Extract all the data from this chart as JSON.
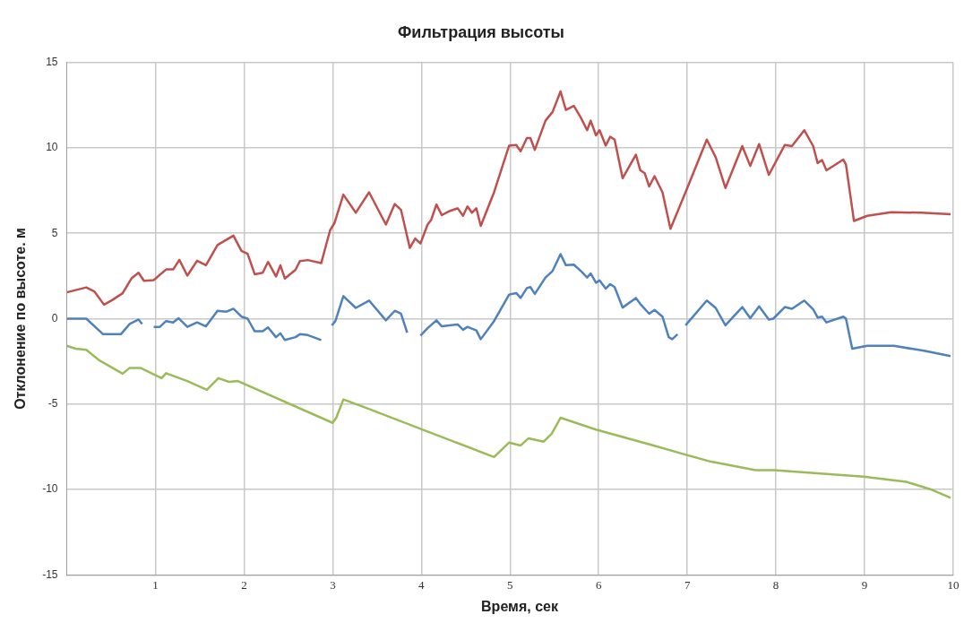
{
  "chart_data": {
    "type": "line",
    "title": "Фильтрация высоты",
    "xlabel": "Время, сек",
    "ylabel": "Отклонение по высоте. м",
    "xlim": [
      0,
      10
    ],
    "xticks": [
      1,
      2,
      3,
      4,
      5,
      6,
      7,
      8,
      9,
      10
    ],
    "ylim": [
      -15,
      15
    ],
    "yticks": [
      -15,
      -10,
      -5,
      0,
      5,
      10,
      15
    ],
    "grid": true,
    "legend": false,
    "marker": "none",
    "line_style": "solid",
    "series": [
      {
        "color": "#c0504d",
        "x": [
          0,
          0.22,
          0.31,
          0.42,
          0.51,
          0.63,
          0.73,
          0.81,
          0.87,
          0.98,
          1.12,
          1.2,
          1.27,
          1.36,
          1.47,
          1.57,
          1.7,
          1.88,
          1.97,
          2.04,
          2.12,
          2.21,
          2.27,
          2.36,
          2.41,
          2.46,
          2.58,
          2.63,
          2.72,
          2.87,
          2.97,
          3.02,
          3.12,
          3.26,
          3.41,
          3.6,
          3.7,
          3.77,
          3.87,
          3.93,
          3.99,
          4.07,
          4.11,
          4.17,
          4.23,
          4.31,
          4.41,
          4.47,
          4.52,
          4.57,
          4.62,
          4.67,
          4.82,
          4.99,
          5.07,
          5.12,
          5.19,
          5.23,
          5.28,
          5.4,
          5.48,
          5.57,
          5.63,
          5.72,
          5.8,
          5.87,
          5.91,
          5.97,
          6.01,
          6.08,
          6.13,
          6.18,
          6.27,
          6.42,
          6.47,
          6.52,
          6.57,
          6.63,
          6.72,
          6.81,
          6.98,
          7.22,
          7.32,
          7.43,
          7.62,
          7.71,
          7.81,
          7.92,
          8.1,
          8.18,
          8.32,
          8.42,
          8.47,
          8.52,
          8.57,
          8.76,
          8.79,
          8.88,
          9.03,
          9.3,
          9.64,
          9.97
        ],
        "values": [
          1.54,
          1.83,
          1.6,
          0.82,
          1.08,
          1.49,
          2.36,
          2.69,
          2.22,
          2.26,
          2.88,
          2.88,
          3.44,
          2.52,
          3.39,
          3.13,
          4.31,
          4.86,
          3.97,
          3.8,
          2.6,
          2.69,
          3.32,
          2.47,
          3.12,
          2.35,
          2.86,
          3.37,
          3.43,
          3.25,
          5.17,
          5.6,
          7.26,
          6.2,
          7.4,
          5.51,
          6.71,
          6.37,
          4.14,
          4.69,
          4.4,
          5.51,
          5.77,
          6.68,
          6.06,
          6.28,
          6.46,
          6.02,
          6.57,
          6.2,
          6.46,
          5.43,
          7.4,
          10.13,
          10.17,
          9.8,
          10.57,
          10.57,
          9.88,
          11.59,
          12.1,
          13.3,
          12.22,
          12.45,
          11.76,
          11.03,
          11.59,
          10.73,
          11.03,
          10.13,
          10.65,
          10.48,
          8.22,
          9.6,
          8.68,
          8.51,
          7.74,
          8.34,
          7.4,
          5.26,
          7.4,
          10.48,
          9.45,
          7.65,
          10.1,
          8.94,
          10.22,
          8.42,
          10.17,
          10.1,
          11.03,
          10.1,
          9.11,
          9.28,
          8.68,
          9.31,
          9.02,
          5.72,
          6.02,
          6.23,
          6.2,
          6.11
        ]
      },
      {
        "color": "#4f81bd",
        "x": [
          0,
          0.22,
          0.41,
          0.61,
          0.71,
          0.81,
          0.85,
          0.92,
          0.98,
          1.05,
          1.12,
          1.2,
          1.26,
          1.36,
          1.47,
          1.57,
          1.7,
          1.8,
          1.88,
          1.97,
          2.04,
          2.12,
          2.21,
          2.27,
          2.36,
          2.41,
          2.46,
          2.58,
          2.63,
          2.72,
          2.87,
          2.93,
          2.99,
          3.03,
          3.12,
          3.26,
          3.41,
          3.6,
          3.7,
          3.77,
          3.84,
          3.92,
          3.99,
          4.07,
          4.17,
          4.23,
          4.41,
          4.47,
          4.52,
          4.62,
          4.67,
          4.82,
          4.99,
          5.07,
          5.12,
          5.19,
          5.23,
          5.28,
          5.4,
          5.48,
          5.57,
          5.63,
          5.72,
          5.8,
          5.87,
          5.91,
          5.97,
          6.01,
          6.08,
          6.13,
          6.18,
          6.27,
          6.42,
          6.47,
          6.57,
          6.63,
          6.72,
          6.79,
          6.83,
          6.89,
          6.94,
          6.98,
          7.22,
          7.32,
          7.43,
          7.62,
          7.71,
          7.81,
          7.92,
          7.97,
          8.1,
          8.18,
          8.32,
          8.42,
          8.47,
          8.52,
          8.57,
          8.76,
          8.79,
          8.86,
          9.03,
          9.33,
          9.67,
          9.97
        ],
        "values": [
          0,
          0,
          -0.91,
          -0.91,
          -0.31,
          -0.05,
          -0.31,
          null,
          -0.48,
          -0.48,
          -0.14,
          -0.22,
          0.03,
          -0.48,
          -0.22,
          -0.45,
          0.46,
          0.41,
          0.58,
          0.12,
          0,
          -0.74,
          -0.74,
          -0.51,
          -1.08,
          -0.86,
          -1.25,
          -1.08,
          -0.91,
          -0.96,
          -1.25,
          null,
          -0.39,
          -0.14,
          1.32,
          0.63,
          1.06,
          -0.1,
          0.46,
          0.29,
          -0.82,
          null,
          -0.99,
          -0.56,
          -0.1,
          -0.45,
          -0.34,
          -0.65,
          -0.48,
          -0.69,
          -1.2,
          -0.14,
          1.41,
          1.5,
          1.21,
          1.79,
          1.85,
          1.45,
          2.41,
          2.79,
          3.78,
          3.13,
          3.16,
          2.79,
          2.41,
          2.65,
          2.1,
          2.24,
          1.76,
          2.02,
          1.85,
          0.65,
          1.21,
          0.86,
          0.29,
          0.51,
          0.12,
          -1.08,
          -1.2,
          -0.91,
          null,
          -0.39,
          1.06,
          0.63,
          -0.39,
          0.68,
          0.03,
          0.72,
          -0.05,
          0,
          0.68,
          0.58,
          1.06,
          0.55,
          0.07,
          0.12,
          -0.22,
          0.12,
          0,
          -1.76,
          -1.59,
          -1.59,
          -1.88,
          -2.19
        ]
      },
      {
        "color": "#9bbb59",
        "x": [
          0,
          0.1,
          0.22,
          0.37,
          0.63,
          0.71,
          0.83,
          1.07,
          1.12,
          1.36,
          1.58,
          1.71,
          1.83,
          1.93,
          3,
          3.04,
          3.12,
          3.36,
          4.82,
          4.99,
          5.12,
          5.21,
          5.38,
          5.47,
          5.57,
          5.97,
          6.62,
          6.96,
          7.26,
          7.77,
          7.98,
          8.99,
          9.47,
          9.74,
          9.97
        ],
        "values": [
          -1.59,
          -1.76,
          -1.82,
          -2.45,
          -3.22,
          -2.88,
          -2.88,
          -3.48,
          -3.19,
          -3.65,
          -4.16,
          -3.48,
          -3.7,
          -3.65,
          -6.1,
          -5.8,
          -4.73,
          -5.19,
          -8.1,
          -7.25,
          -7.42,
          -7,
          -7.2,
          -6.74,
          -5.8,
          -6.49,
          -7.42,
          -7.93,
          -8.36,
          -8.87,
          -8.87,
          -9.25,
          -9.55,
          -9.98,
          -10.49
        ]
      }
    ]
  }
}
